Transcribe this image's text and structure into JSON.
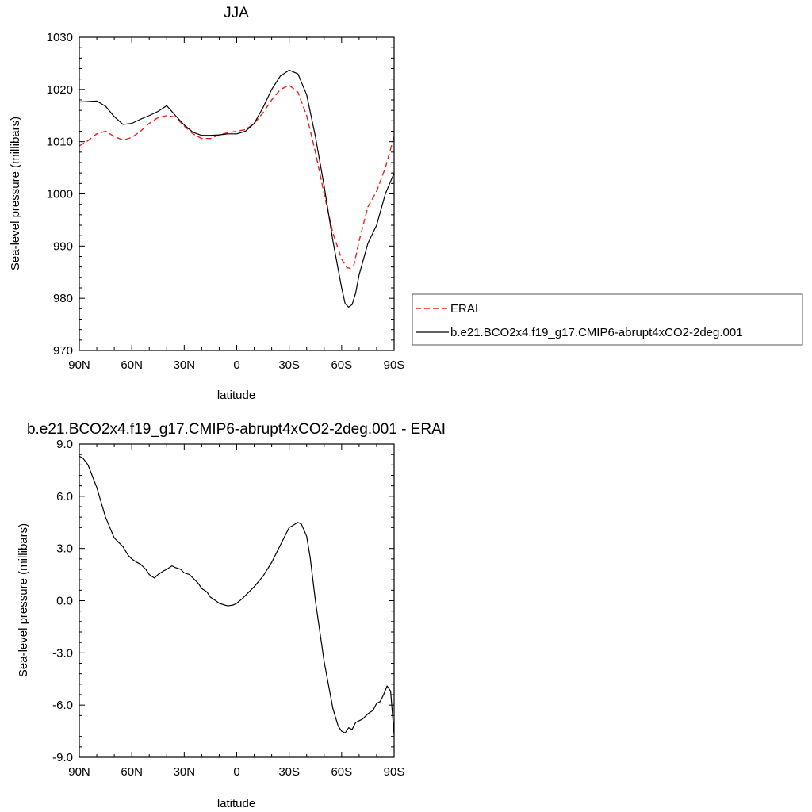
{
  "chart_data": [
    {
      "type": "line",
      "title": "JJA",
      "xlabel": "latitude",
      "ylabel": "Sea-level pressure (millibars)",
      "xlim": [
        90,
        -90
      ],
      "ylim": [
        970,
        1030
      ],
      "xticks": [
        {
          "v": 90,
          "label": "90N"
        },
        {
          "v": 60,
          "label": "60N"
        },
        {
          "v": 30,
          "label": "30N"
        },
        {
          "v": 0,
          "label": "0"
        },
        {
          "v": -30,
          "label": "30S"
        },
        {
          "v": -60,
          "label": "60S"
        },
        {
          "v": -90,
          "label": "90S"
        }
      ],
      "yticks": [
        {
          "v": 970,
          "label": "970"
        },
        {
          "v": 980,
          "label": "980"
        },
        {
          "v": 990,
          "label": "990"
        },
        {
          "v": 1000,
          "label": "1000"
        },
        {
          "v": 1010,
          "label": "1010"
        },
        {
          "v": 1020,
          "label": "1020"
        },
        {
          "v": 1030,
          "label": "1030"
        }
      ],
      "legend_position": "right",
      "series": [
        {
          "name": "ERAI",
          "color": "#e8211d",
          "dash": "dashed",
          "x": [
            90,
            85,
            80,
            75,
            70,
            65,
            60,
            55,
            50,
            45,
            40,
            35,
            30,
            25,
            20,
            15,
            10,
            5,
            0,
            -5,
            -10,
            -15,
            -20,
            -25,
            -30,
            -35,
            -40,
            -45,
            -50,
            -55,
            -60,
            -63,
            -65,
            -67,
            -70,
            -75,
            -80,
            -85,
            -90
          ],
          "y": [
            1009.2,
            1010.2,
            1011.5,
            1012.0,
            1011.0,
            1010.3,
            1010.8,
            1012.0,
            1013.5,
            1014.6,
            1015.0,
            1014.7,
            1013.0,
            1011.5,
            1010.6,
            1010.6,
            1011.3,
            1011.7,
            1012.0,
            1012.3,
            1013.5,
            1015.5,
            1018.0,
            1020.0,
            1020.8,
            1019.5,
            1015.0,
            1008.0,
            1000.0,
            992.5,
            987.5,
            985.9,
            985.7,
            986.3,
            991.0,
            997.5,
            1000.5,
            1005.0,
            1011.0
          ]
        },
        {
          "name": "b.e21.BCO2x4.f19_g17.CMIP6-abrupt4xCO2-2deg.001",
          "color": "#000000",
          "dash": "solid",
          "x": [
            90,
            85,
            80,
            75,
            70,
            65,
            60,
            55,
            50,
            45,
            40,
            35,
            30,
            25,
            20,
            15,
            10,
            5,
            0,
            -5,
            -10,
            -15,
            -20,
            -25,
            -30,
            -35,
            -40,
            -45,
            -50,
            -55,
            -60,
            -62,
            -64,
            -66,
            -68,
            -70,
            -75,
            -80,
            -85,
            -90
          ],
          "y": [
            1017.6,
            1017.7,
            1017.8,
            1016.8,
            1014.8,
            1013.3,
            1013.5,
            1014.3,
            1015.0,
            1015.8,
            1016.9,
            1015.0,
            1013.2,
            1011.8,
            1011.2,
            1011.2,
            1011.3,
            1011.5,
            1011.5,
            1012.0,
            1013.5,
            1016.5,
            1020.0,
            1022.6,
            1023.7,
            1023.0,
            1019.0,
            1011.0,
            1001.5,
            991.0,
            982.0,
            979.0,
            978.3,
            978.8,
            981.0,
            984.5,
            990.5,
            994.0,
            1000.0,
            1004.0
          ]
        }
      ]
    },
    {
      "type": "line",
      "title": "b.e21.BCO2x4.f19_g17.CMIP6-abrupt4xCO2-2deg.001 - ERAI",
      "xlabel": "latitude",
      "ylabel": "Sea-level pressure (millibars)",
      "xlim": [
        90,
        -90
      ],
      "ylim": [
        -9,
        9
      ],
      "xticks": [
        {
          "v": 90,
          "label": "90N"
        },
        {
          "v": 60,
          "label": "60N"
        },
        {
          "v": 30,
          "label": "30N"
        },
        {
          "v": 0,
          "label": "0"
        },
        {
          "v": -30,
          "label": "30S"
        },
        {
          "v": -60,
          "label": "60S"
        },
        {
          "v": -90,
          "label": "90S"
        }
      ],
      "yticks": [
        {
          "v": -9,
          "label": "-9.0"
        },
        {
          "v": -6,
          "label": "-6.0"
        },
        {
          "v": -3,
          "label": "-3.0"
        },
        {
          "v": 0,
          "label": "0.0"
        },
        {
          "v": 3,
          "label": "3.0"
        },
        {
          "v": 6,
          "label": "6.0"
        },
        {
          "v": 9,
          "label": "9.0"
        }
      ],
      "series": [
        {
          "color": "#000000",
          "dash": "solid",
          "x": [
            90,
            88,
            85,
            80,
            75,
            70,
            67,
            65,
            62,
            60,
            57,
            55,
            52,
            50,
            47,
            45,
            42,
            40,
            37,
            35,
            32,
            30,
            27,
            25,
            22,
            20,
            17,
            15,
            12,
            10,
            7,
            5,
            2,
            0,
            -3,
            -5,
            -10,
            -15,
            -20,
            -25,
            -30,
            -35,
            -37,
            -40,
            -42,
            -45,
            -50,
            -55,
            -58,
            -60,
            -62,
            -64,
            -66,
            -68,
            -70,
            -72,
            -75,
            -78,
            -80,
            -82,
            -84,
            -86,
            -88,
            -90
          ],
          "y": [
            8.3,
            8.2,
            7.8,
            6.5,
            4.8,
            3.6,
            3.3,
            3.1,
            2.6,
            2.4,
            2.2,
            2.1,
            1.8,
            1.5,
            1.3,
            1.5,
            1.7,
            1.8,
            2.0,
            1.9,
            1.8,
            1.6,
            1.5,
            1.3,
            1.0,
            0.7,
            0.5,
            0.2,
            0.0,
            -0.15,
            -0.25,
            -0.3,
            -0.25,
            -0.15,
            0.1,
            0.3,
            0.8,
            1.4,
            2.2,
            3.2,
            4.2,
            4.5,
            4.4,
            3.7,
            2.5,
            0.0,
            -3.5,
            -6.2,
            -7.2,
            -7.5,
            -7.6,
            -7.3,
            -7.4,
            -7.0,
            -6.9,
            -6.8,
            -6.5,
            -6.3,
            -5.9,
            -5.8,
            -5.4,
            -4.9,
            -5.2,
            -7.7
          ]
        }
      ]
    }
  ]
}
